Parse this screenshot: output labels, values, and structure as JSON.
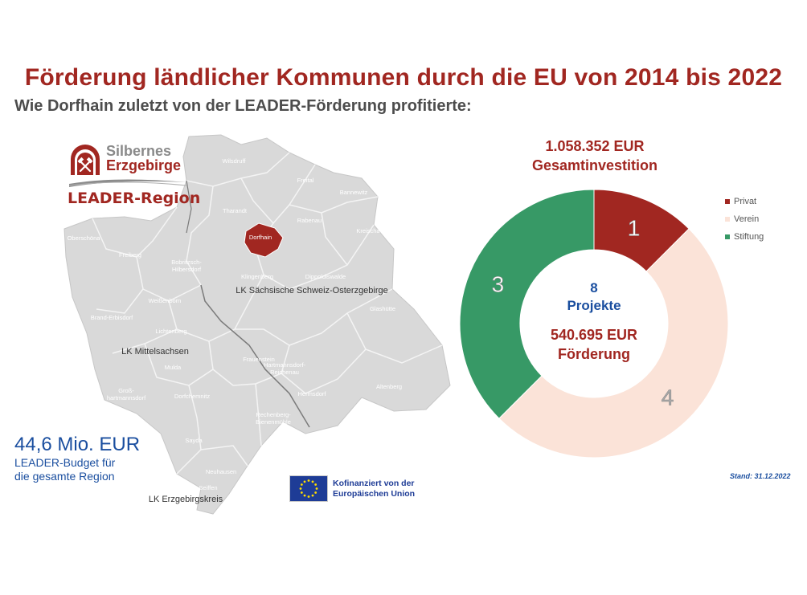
{
  "title": "Förderung ländlicher Kommunen durch die EU von 2014 bis 2022",
  "subtitle": "Wie Dorfhain zuletzt von der LEADER-Förderung profitierte:",
  "logo": {
    "name_line1": "Silbernes",
    "name_line2": "Erzgebirge",
    "region": "LEADER-Region",
    "icon": "hammer-and-pick-icon"
  },
  "map": {
    "highlighted": "Dorfhain",
    "districts": [
      "LK Sächsische Schweiz-Osterzgebirge",
      "LK Mittelsachsen",
      "LK Erzgebirgskreis"
    ],
    "towns": [
      "Wilsdruff",
      "Freital",
      "Bannewitz",
      "Tharandt",
      "Rabenau",
      "Kreischa",
      "Oberschöna",
      "Dorfhain",
      "Freiberg",
      "Bobritzsch-Hilbersdorf",
      "Klingenberg",
      "Dippoldiswalde",
      "Weißenborn",
      "Glashütte",
      "Brand-Erbisdorf",
      "Lichtenberg",
      "Frauenstein",
      "Hartmannsdorf-Reichenau",
      "Mulda",
      "Altenberg",
      "Groß-hartmannsdorf",
      "Dorfchemnitz",
      "Hermsdorf",
      "Rechenberg-Bienenmühle",
      "Sayda",
      "Neuhausen",
      "Seiffen"
    ],
    "colors": {
      "region": "#d9d9d9",
      "highlight": "#a12721",
      "border": "#ffffff"
    }
  },
  "budget": {
    "amount": "44,6 Mio. EUR",
    "line1": "LEADER-Budget für",
    "line2": "die gesamte Region"
  },
  "eu": {
    "line1": "Kofinanziert von der",
    "line2": "Europäischen Union",
    "icon": "eu-flag-icon"
  },
  "investment": {
    "amount": "1.058.352 EUR",
    "label": "Gesamtinvestition"
  },
  "center": {
    "projects_count": "8",
    "projects_label": "Projekte",
    "funding_amount": "540.695 EUR",
    "funding_label": "Förderung"
  },
  "stand": "Stand: 31.12.2022",
  "chart_data": {
    "type": "pie",
    "donut": true,
    "categories": [
      "Privat",
      "Verein",
      "Stiftung"
    ],
    "values": [
      1,
      4,
      3
    ],
    "colors": [
      "#a12721",
      "#fbe3d8",
      "#379966"
    ],
    "label_colors": [
      "#ffffff",
      "#aaaaaa",
      "#ffffff"
    ],
    "legend": "right"
  }
}
